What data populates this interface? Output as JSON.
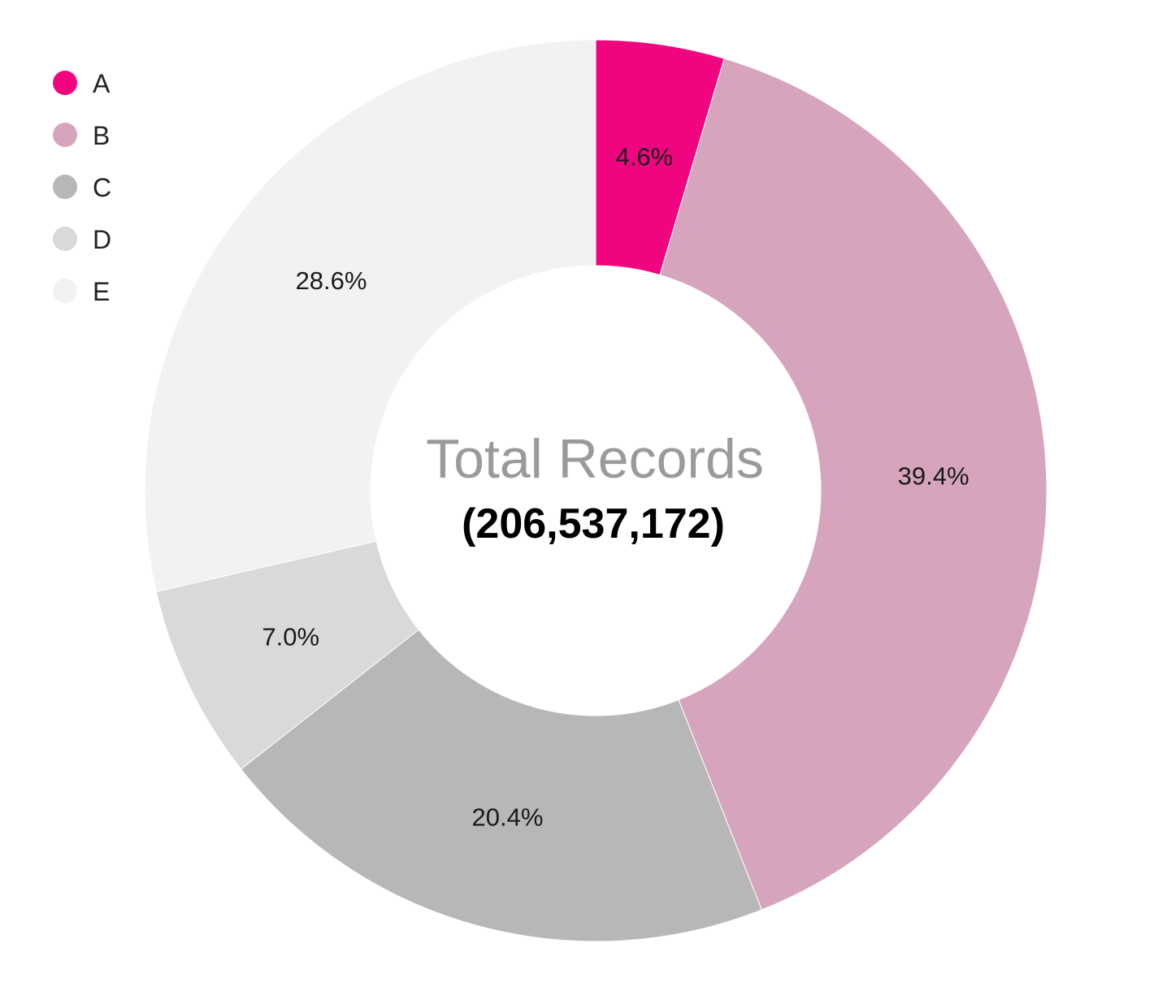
{
  "chart_data": {
    "type": "pie",
    "variant": "donut",
    "center_title": "Total Records",
    "center_value": "(206,537,172)",
    "legend_position": "top-left",
    "slices": [
      {
        "label": "A",
        "value": 4.6,
        "display": "4.6%",
        "color": "#f0047f"
      },
      {
        "label": "B",
        "value": 39.4,
        "display": "39.4%",
        "color": "#d6a5bd"
      },
      {
        "label": "C",
        "value": 20.4,
        "display": "20.4%",
        "color": "#b7b7b7"
      },
      {
        "label": "D",
        "value": 7.0,
        "display": "7.0%",
        "color": "#d9d9d9"
      },
      {
        "label": "E",
        "value": 28.6,
        "display": "28.6%",
        "color": "#f2f2f2"
      }
    ]
  }
}
